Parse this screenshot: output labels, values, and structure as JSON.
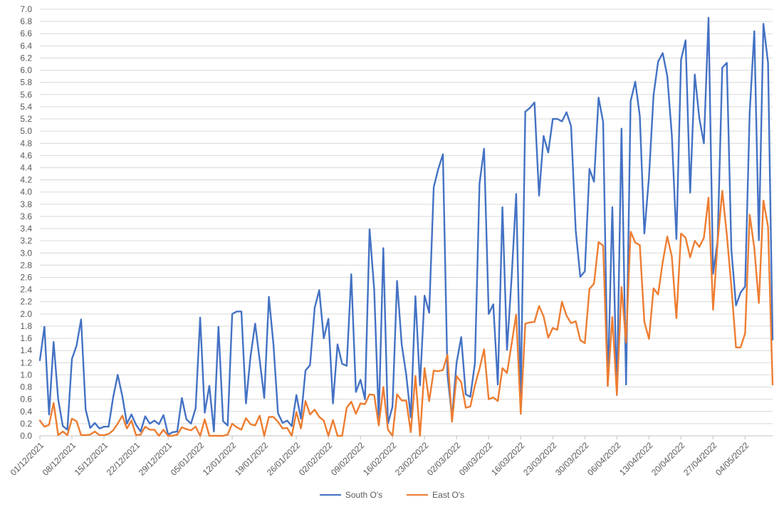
{
  "chart_data": {
    "type": "line",
    "title": "",
    "xlabel": "",
    "ylabel": "",
    "ylim": [
      0,
      7
    ],
    "ytick_step": 0.2,
    "grid": true,
    "legend_position": "bottom",
    "x_tick_labels": [
      "01/12/2021",
      "08/12/2021",
      "15/12/2021",
      "22/12/2021",
      "29/12/2021",
      "05/01/2022",
      "12/01/2022",
      "19/01/2022",
      "26/01/2022",
      "02/02/2022",
      "09/02/2022",
      "16/02/2022",
      "23/02/2022",
      "02/03/2022",
      "09/03/2022",
      "16/03/2022",
      "23/03/2022",
      "30/03/2022",
      "06/04/2022",
      "13/04/2022",
      "20/04/2022",
      "27/04/2022",
      "04/05/2022"
    ],
    "series": [
      {
        "name": "South O's",
        "color": "#4472C4",
        "values": [
          1.24,
          1.79,
          0.35,
          1.54,
          0.6,
          0.16,
          0.1,
          1.26,
          1.48,
          1.91,
          0.43,
          0.13,
          0.21,
          0.12,
          0.15,
          0.15,
          0.63,
          1.0,
          0.65,
          0.2,
          0.35,
          0.18,
          0.07,
          0.32,
          0.2,
          0.25,
          0.19,
          0.34,
          0.02,
          0.06,
          0.07,
          0.62,
          0.27,
          0.2,
          0.45,
          1.94,
          0.38,
          0.82,
          0.07,
          1.79,
          0.24,
          0.17,
          2.0,
          2.04,
          2.04,
          0.53,
          1.3,
          1.84,
          1.24,
          0.62,
          2.28,
          1.5,
          0.37,
          0.21,
          0.25,
          0.16,
          0.67,
          0.28,
          1.07,
          1.16,
          2.1,
          2.39,
          1.6,
          1.92,
          0.53,
          1.5,
          1.18,
          1.15,
          2.65,
          0.72,
          0.92,
          0.6,
          3.39,
          2.4,
          0.27,
          3.08,
          0.2,
          0.48,
          2.54,
          1.5,
          1.0,
          0.3,
          2.29,
          0.83,
          2.3,
          2.02,
          4.08,
          4.38,
          4.62,
          1.0,
          0.3,
          1.2,
          1.62,
          0.68,
          0.64,
          1.2,
          4.14,
          4.71,
          2.0,
          2.16,
          0.84,
          3.75,
          1.41,
          2.58,
          3.97,
          0.64,
          5.32,
          5.38,
          5.47,
          3.94,
          4.92,
          4.65,
          5.2,
          5.2,
          5.16,
          5.31,
          5.08,
          3.37,
          2.61,
          2.7,
          4.38,
          4.17,
          5.55,
          5.15,
          0.82,
          3.75,
          0.67,
          5.04,
          0.84,
          5.49,
          5.81,
          5.25,
          3.32,
          4.25,
          5.59,
          6.14,
          6.28,
          5.9,
          4.93,
          3.23,
          6.17,
          6.49,
          3.99,
          5.93,
          5.21,
          4.8,
          6.86,
          2.66,
          3.2,
          6.04,
          6.12,
          3.05,
          2.14,
          2.35,
          2.45,
          5.3,
          6.64,
          3.21,
          6.76,
          6.12,
          1.58
        ],
        "values_note": ""
      },
      {
        "name": "East O's",
        "color": "#ED7D31",
        "values": [
          0.25,
          0.15,
          0.18,
          0.54,
          0.01,
          0.07,
          0.01,
          0.28,
          0.24,
          0.01,
          0.01,
          0.02,
          0.07,
          0.01,
          0.01,
          0.03,
          0.09,
          0.2,
          0.33,
          0.12,
          0.25,
          0.01,
          0.02,
          0.15,
          0.1,
          0.1,
          0.0,
          0.1,
          0.0,
          0.0,
          0.02,
          0.14,
          0.11,
          0.09,
          0.15,
          0.0,
          0.27,
          0.0,
          0.0,
          0.0,
          0.0,
          0.02,
          0.2,
          0.14,
          0.1,
          0.29,
          0.19,
          0.17,
          0.33,
          0.0,
          0.31,
          0.31,
          0.23,
          0.12,
          0.13,
          0.0,
          0.39,
          0.12,
          0.57,
          0.35,
          0.43,
          0.31,
          0.25,
          0.0,
          0.26,
          0.0,
          0.0,
          0.46,
          0.56,
          0.36,
          0.53,
          0.52,
          0.68,
          0.67,
          0.17,
          0.8,
          0.1,
          0.0,
          0.68,
          0.58,
          0.58,
          0.06,
          0.98,
          0.0,
          1.11,
          0.57,
          1.07,
          1.06,
          1.08,
          1.33,
          0.23,
          0.98,
          0.88,
          0.46,
          0.48,
          0.83,
          1.1,
          1.42,
          0.6,
          0.63,
          0.57,
          1.11,
          1.03,
          1.5,
          1.99,
          0.36,
          1.84,
          1.86,
          1.87,
          2.13,
          1.96,
          1.61,
          1.77,
          1.74,
          2.2,
          1.97,
          1.85,
          1.88,
          1.57,
          1.52,
          2.41,
          2.5,
          3.18,
          3.12,
          0.82,
          1.95,
          0.67,
          2.44,
          1.53,
          3.35,
          3.17,
          3.13,
          1.87,
          1.59,
          2.42,
          2.32,
          2.85,
          3.27,
          2.94,
          1.93,
          3.32,
          3.25,
          2.93,
          3.2,
          3.1,
          3.25,
          3.91,
          2.07,
          3.18,
          4.02,
          3.3,
          2.45,
          1.45,
          1.45,
          1.68,
          3.63,
          3.08,
          2.18,
          3.86,
          3.43,
          0.84
        ],
        "values_note": ""
      }
    ]
  }
}
